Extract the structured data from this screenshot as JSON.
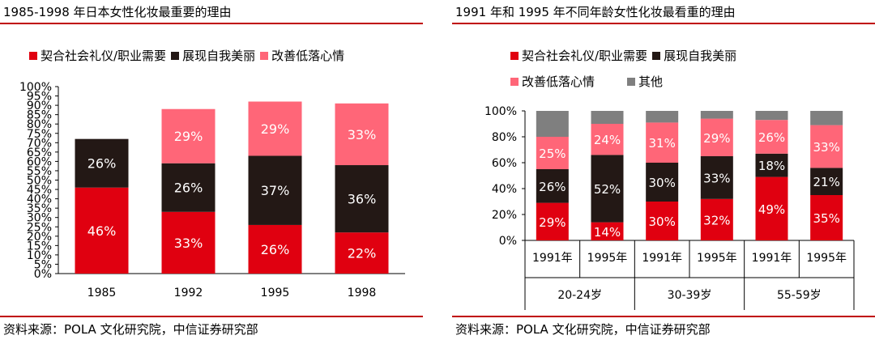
{
  "colors": {
    "social": "#e00010",
    "appearance": "#231815",
    "mood": "#ff6678",
    "other": "#7f7f7f",
    "accent_rule": "#c00000"
  },
  "left": {
    "title": "1985-1998 年日本女性化妆最重要的理由",
    "source": "资料来源：POLA 文化研究院，中信证券研究部",
    "legend": [
      "契合社会礼仪/职业需要",
      "展现自我美丽",
      "改善低落心情"
    ]
  },
  "right": {
    "title": "1991 年和 1995 年不同年龄女性化妆最看重的理由",
    "source": "资料来源：POLA 文化研究院，中信证券研究部",
    "legend": [
      "契合社会礼仪/职业需要",
      "展现自我美丽",
      "改善低落心情",
      "其他"
    ]
  },
  "chart_data": [
    {
      "type": "bar",
      "stacked": true,
      "title": "1985-1998 年日本女性化妆最重要的理由",
      "categories": [
        "1985",
        "1992",
        "1995",
        "1998"
      ],
      "series": [
        {
          "name": "契合社会礼仪/职业需要",
          "values": [
            46,
            33,
            26,
            22
          ],
          "labels": [
            "46%",
            "33%",
            "26%",
            "22%"
          ]
        },
        {
          "name": "展现自我美丽",
          "values": [
            26,
            26,
            37,
            36
          ],
          "labels": [
            "26%",
            "26%",
            "37%",
            "36%"
          ]
        },
        {
          "name": "改善低落心情",
          "values": [
            0,
            29,
            29,
            33
          ],
          "labels": [
            "",
            "29%",
            "29%",
            "33%"
          ]
        }
      ],
      "yticks": [
        "0%",
        "5%",
        "10%",
        "15%",
        "20%",
        "25%",
        "30%",
        "35%",
        "40%",
        "45%",
        "50%",
        "55%",
        "60%",
        "65%",
        "70%",
        "75%",
        "80%",
        "85%",
        "90%",
        "95%",
        "100%"
      ],
      "ylim": [
        0,
        100
      ],
      "grid": false,
      "legend_position": "top"
    },
    {
      "type": "bar",
      "stacked": true,
      "title": "1991 年和 1995 年不同年龄女性化妆最看重的理由",
      "categories": [
        "1991年",
        "1995年",
        "1991年",
        "1995年",
        "1991年",
        "1995年"
      ],
      "groups": [
        "20-24岁",
        "30-39岁",
        "55-59岁"
      ],
      "series": [
        {
          "name": "契合社会礼仪/职业需要",
          "values": [
            29,
            14,
            30,
            32,
            49,
            35
          ],
          "labels": [
            "29%",
            "14%",
            "30%",
            "32%",
            "49%",
            "35%"
          ]
        },
        {
          "name": "展现自我美丽",
          "values": [
            26,
            52,
            30,
            33,
            18,
            21
          ],
          "labels": [
            "26%",
            "52%",
            "30%",
            "33%",
            "18%",
            "21%"
          ]
        },
        {
          "name": "改善低落心情",
          "values": [
            25,
            24,
            31,
            29,
            26,
            33
          ],
          "labels": [
            "25%",
            "24%",
            "31%",
            "29%",
            "26%",
            "33%"
          ]
        },
        {
          "name": "其他",
          "values": [
            20,
            10,
            9,
            6,
            7,
            11
          ],
          "labels": [
            "",
            "",
            "",
            "",
            "",
            ""
          ]
        }
      ],
      "yticks": [
        "0%",
        "20%",
        "40%",
        "60%",
        "80%",
        "100%"
      ],
      "ylim": [
        0,
        100
      ],
      "grid": false,
      "legend_position": "top"
    }
  ]
}
